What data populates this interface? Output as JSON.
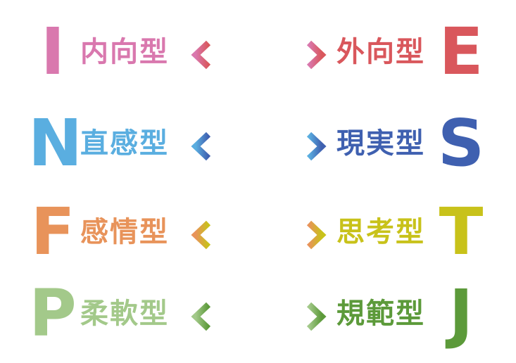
{
  "rows": [
    {
      "left_letter": "I",
      "left_label": "内向型",
      "right_label": "外向型",
      "right_letter": "E",
      "left_color": "#d978ae",
      "right_color": "#d9575c"
    },
    {
      "left_letter": "N",
      "left_label": "直感型",
      "right_label": "現実型",
      "right_letter": "S",
      "left_color": "#5aaee0",
      "right_color": "#3f60b0"
    },
    {
      "left_letter": "F",
      "left_label": "感情型",
      "right_label": "思考型",
      "right_letter": "T",
      "left_color": "#e8935a",
      "right_color": "#c8c21a"
    },
    {
      "left_letter": "P",
      "left_label": "柔軟型",
      "right_label": "規範型",
      "right_letter": "J",
      "left_color": "#a3c98a",
      "right_color": "#5c9a3a"
    }
  ]
}
